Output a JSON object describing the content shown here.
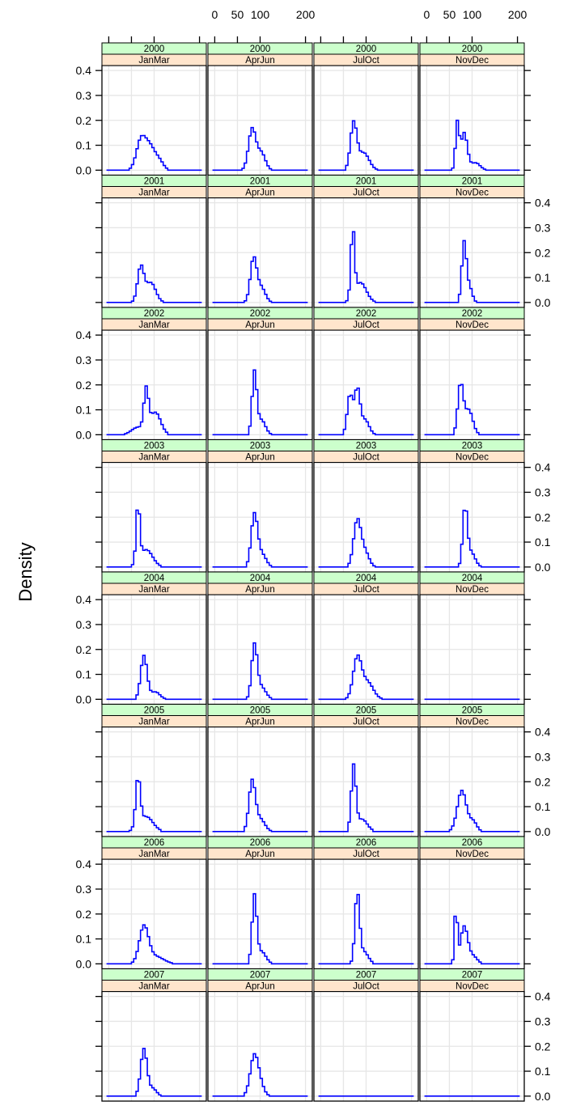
{
  "chart_data": {
    "type": "line",
    "ylabel": "Density",
    "xlabel": "",
    "x_ticks": [
      0,
      50,
      100,
      200
    ],
    "x_tick_labels": [
      "0",
      "50",
      "100",
      "200"
    ],
    "xlim": [
      -15,
      215
    ],
    "y_ticks": [
      0.0,
      0.1,
      0.2,
      0.3,
      0.4
    ],
    "y_tick_labels": [
      "0.0",
      "0.1",
      "0.2",
      "0.3",
      "0.4"
    ],
    "ylim": [
      -0.02,
      0.42
    ],
    "strip_year_color": "#ccffcc",
    "strip_period_color": "#ffe5cc",
    "line_color": "#0000ff",
    "grid_color": "#e6e6e6",
    "grid": true,
    "years": [
      "2000",
      "2001",
      "2002",
      "2003",
      "2004",
      "2005",
      "2006",
      "2007"
    ],
    "periods": [
      "JanMar",
      "AprJun",
      "JulOct",
      "NovDec"
    ],
    "panels": [
      {
        "year": "2000",
        "period": "JanMar",
        "peaks": [
          [
            68,
            0.11,
            10
          ],
          [
            88,
            0.095,
            12
          ],
          [
            110,
            0.03,
            9
          ]
        ]
      },
      {
        "year": "2000",
        "period": "AprJun",
        "peaks": [
          [
            80,
            0.165,
            8
          ],
          [
            100,
            0.07,
            9
          ]
        ]
      },
      {
        "year": "2000",
        "period": "JulOct",
        "peaks": [
          [
            70,
            0.185,
            7
          ],
          [
            92,
            0.07,
            12
          ]
        ]
      },
      {
        "year": "2000",
        "period": "NovDec",
        "peaks": [
          [
            65,
            0.185,
            4
          ],
          [
            80,
            0.15,
            7
          ],
          [
            105,
            0.03,
            10
          ]
        ]
      },
      {
        "year": "2001",
        "period": "JanMar",
        "peaks": [
          [
            68,
            0.14,
            7
          ],
          [
            90,
            0.08,
            11
          ]
        ]
      },
      {
        "year": "2001",
        "period": "AprJun",
        "peaks": [
          [
            83,
            0.175,
            7
          ],
          [
            100,
            0.06,
            9
          ]
        ]
      },
      {
        "year": "2001",
        "period": "JulOct",
        "peaks": [
          [
            68,
            0.275,
            4
          ],
          [
            85,
            0.08,
            13
          ]
        ]
      },
      {
        "year": "2001",
        "period": "NovDec",
        "peaks": [
          [
            80,
            0.24,
            5
          ],
          [
            92,
            0.06,
            6
          ]
        ]
      },
      {
        "year": "2002",
        "period": "JanMar",
        "peaks": [
          [
            62,
            0.03,
            14
          ],
          [
            80,
            0.16,
            5
          ],
          [
            100,
            0.09,
            12
          ]
        ]
      },
      {
        "year": "2002",
        "period": "AprJun",
        "peaks": [
          [
            85,
            0.245,
            5
          ],
          [
            100,
            0.06,
            9
          ]
        ]
      },
      {
        "year": "2002",
        "period": "JulOct",
        "peaks": [
          [
            62,
            0.16,
            6
          ],
          [
            78,
            0.18,
            6
          ],
          [
            95,
            0.06,
            9
          ]
        ]
      },
      {
        "year": "2002",
        "period": "NovDec",
        "peaks": [
          [
            72,
            0.2,
            6
          ],
          [
            90,
            0.1,
            9
          ]
        ]
      },
      {
        "year": "2003",
        "period": "JanMar",
        "peaks": [
          [
            62,
            0.23,
            4
          ],
          [
            80,
            0.07,
            14
          ]
        ]
      },
      {
        "year": "2003",
        "period": "AprJun",
        "peaks": [
          [
            85,
            0.21,
            7
          ],
          [
            102,
            0.05,
            9
          ]
        ]
      },
      {
        "year": "2003",
        "period": "JulOct",
        "peaks": [
          [
            78,
            0.185,
            8
          ],
          [
            95,
            0.06,
            9
          ]
        ]
      },
      {
        "year": "2003",
        "period": "NovDec",
        "peaks": [
          [
            82,
            0.23,
            5
          ],
          [
            95,
            0.06,
            9
          ]
        ]
      },
      {
        "year": "2004",
        "period": "JanMar",
        "peaks": [
          [
            75,
            0.175,
            7
          ],
          [
            100,
            0.03,
            10
          ]
        ]
      },
      {
        "year": "2004",
        "period": "AprJun",
        "peaks": [
          [
            85,
            0.21,
            6
          ],
          [
            100,
            0.05,
            10
          ]
        ]
      },
      {
        "year": "2004",
        "period": "JulOct",
        "peaks": [
          [
            78,
            0.16,
            9
          ],
          [
            100,
            0.07,
            13
          ]
        ]
      },
      {
        "year": "2004",
        "period": "NovDec",
        "peaks": []
      },
      {
        "year": "2005",
        "period": "JanMar",
        "peaks": [
          [
            62,
            0.195,
            5
          ],
          [
            80,
            0.06,
            15
          ]
        ]
      },
      {
        "year": "2005",
        "period": "AprJun",
        "peaks": [
          [
            80,
            0.2,
            7
          ],
          [
            98,
            0.05,
            10
          ]
        ]
      },
      {
        "year": "2005",
        "period": "JulOct",
        "peaks": [
          [
            70,
            0.255,
            5
          ],
          [
            88,
            0.05,
            12
          ]
        ]
      },
      {
        "year": "2005",
        "period": "NovDec",
        "peaks": [
          [
            75,
            0.165,
            10
          ],
          [
            100,
            0.04,
            8
          ]
        ]
      },
      {
        "year": "2006",
        "period": "JanMar",
        "peaks": [
          [
            75,
            0.145,
            10
          ],
          [
            100,
            0.03,
            18
          ]
        ]
      },
      {
        "year": "2006",
        "period": "AprJun",
        "peaks": [
          [
            85,
            0.265,
            5
          ],
          [
            100,
            0.05,
            10
          ]
        ]
      },
      {
        "year": "2006",
        "period": "JulOct",
        "peaks": [
          [
            78,
            0.275,
            5
          ],
          [
            92,
            0.05,
            10
          ]
        ]
      },
      {
        "year": "2006",
        "period": "NovDec",
        "peaks": [
          [
            62,
            0.23,
            3
          ],
          [
            80,
            0.15,
            8
          ],
          [
            100,
            0.03,
            9
          ]
        ]
      },
      {
        "year": "2007",
        "period": "JanMar",
        "peaks": [
          [
            75,
            0.19,
            7
          ],
          [
            95,
            0.03,
            8
          ]
        ]
      },
      {
        "year": "2007",
        "period": "AprJun",
        "peaks": [
          [
            85,
            0.165,
            9
          ],
          [
            100,
            0.03,
            8
          ]
        ]
      },
      {
        "year": "2007",
        "period": "JulOct",
        "peaks": []
      },
      {
        "year": "2007",
        "period": "NovDec",
        "peaks": []
      }
    ]
  }
}
